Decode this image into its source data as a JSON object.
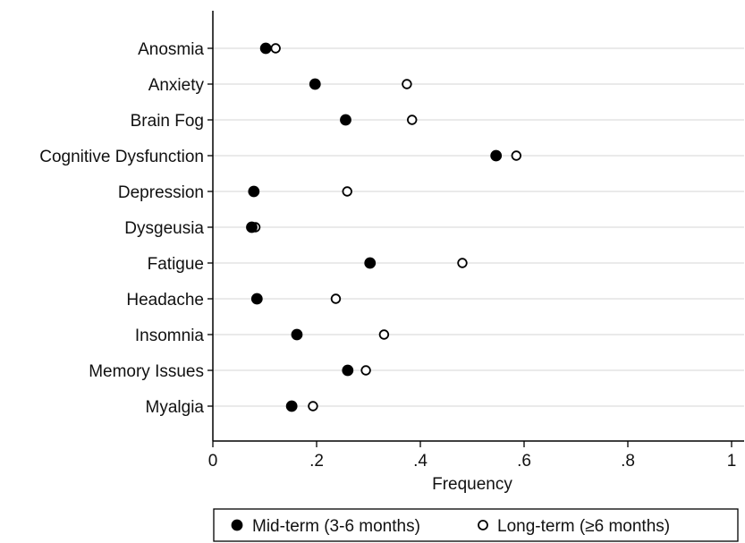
{
  "chart_data": {
    "type": "scatter",
    "categories": [
      "Anosmia",
      "Anxiety",
      "Brain Fog",
      "Cognitive Dysfunction",
      "Depression",
      "Dysgeusia",
      "Fatigue",
      "Headache",
      "Insomnia",
      "Memory Issues",
      "Myalgia"
    ],
    "series": [
      {
        "name": "Mid-term (3-6 months)",
        "marker": "filled-circle",
        "color": "#000000",
        "values": [
          0.102,
          0.197,
          0.256,
          0.546,
          0.079,
          0.075,
          0.303,
          0.085,
          0.162,
          0.26,
          0.152
        ]
      },
      {
        "name": "Long-term (≥6 months)",
        "marker": "hollow-circle",
        "color": "#000000",
        "values": [
          0.121,
          0.374,
          0.384,
          0.585,
          0.259,
          0.082,
          0.481,
          0.237,
          0.33,
          0.295,
          0.193
        ]
      }
    ],
    "xlabel": "Frequency",
    "xlim": [
      0,
      1
    ],
    "xticks": [
      0,
      0.2,
      0.4,
      0.6,
      0.8,
      1
    ],
    "xtick_labels": [
      "0",
      ".2",
      ".4",
      ".6",
      ".8",
      "1"
    ],
    "grid": "horizontal lines at each category",
    "legend_position": "bottom"
  }
}
